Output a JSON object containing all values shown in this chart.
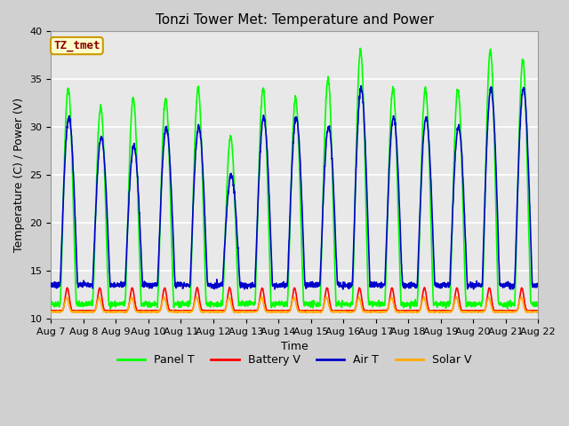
{
  "title": "Tonzi Tower Met: Temperature and Power",
  "xlabel": "Time",
  "ylabel": "Temperature (C) / Power (V)",
  "annotation": "TZ_tmet",
  "ylim": [
    10,
    40
  ],
  "xlim": [
    0,
    15
  ],
  "fig_bg_color": "#d0d0d0",
  "plot_bg_color": "#e8e8e8",
  "grid_color": "white",
  "legend_labels": [
    "Panel T",
    "Battery V",
    "Air T",
    "Solar V"
  ],
  "legend_colors": [
    "#00ff00",
    "#ff0000",
    "#0000cc",
    "#ffaa00"
  ],
  "xtick_labels": [
    "Aug 7",
    "Aug 8",
    "Aug 9",
    "Aug 10",
    "Aug 11",
    "Aug 12",
    "Aug 13",
    "Aug 14",
    "Aug 15",
    "Aug 16",
    "Aug 17",
    "Aug 18",
    "Aug 19",
    "Aug 20",
    "Aug 21",
    "Aug 22"
  ],
  "xtick_positions": [
    0,
    1,
    2,
    3,
    4,
    5,
    6,
    7,
    8,
    9,
    10,
    11,
    12,
    13,
    14,
    15
  ],
  "ytick_labels": [
    "10",
    "15",
    "20",
    "25",
    "30",
    "35",
    "40"
  ],
  "ytick_positions": [
    10,
    15,
    20,
    25,
    30,
    35,
    40
  ],
  "title_fontsize": 11,
  "axis_fontsize": 9,
  "tick_fontsize": 8,
  "line_width": 1.2,
  "panel_peaks": [
    34,
    32,
    33,
    33,
    34,
    29,
    34,
    33,
    35,
    38,
    34,
    34,
    34,
    38,
    37
  ],
  "air_peaks": [
    31,
    29,
    28,
    30,
    30,
    25,
    31,
    31,
    30,
    34,
    31,
    31,
    30,
    34,
    34
  ],
  "panel_night_min": 11.5,
  "air_night_min": 13.5,
  "battery_base": 10.8,
  "battery_peak": 13.2,
  "solar_base": 10.7,
  "solar_peak": 12.2
}
